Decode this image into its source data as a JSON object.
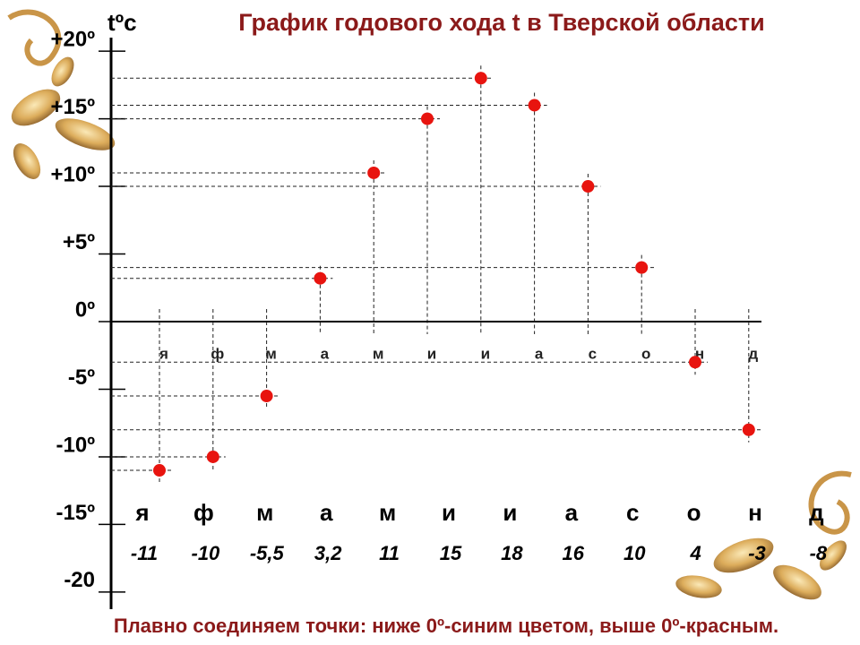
{
  "chart_data": {
    "type": "scatter",
    "title": "График годового хода t в Тверской области",
    "y_label": "tºс",
    "annotation": "Плавно соединяем точки: ниже 0º-синим цветом, выше 0º-красным.",
    "categories": [
      "я",
      "ф",
      "м",
      "а",
      "м",
      "и",
      "и",
      "а",
      "с",
      "о",
      "н",
      "д"
    ],
    "values": [
      -11,
      -10,
      -5.5,
      3.2,
      11,
      15,
      18,
      16,
      10,
      4,
      -3,
      -8
    ],
    "value_labels": [
      "-11",
      "-10",
      "-5,5",
      "3,2",
      "11",
      "15",
      "18",
      "16",
      "10",
      "4",
      "-3",
      "-8"
    ],
    "color": "#e8140f",
    "ylim": [
      -21,
      21
    ],
    "yticks": [
      {
        "value": 20,
        "label": "+20º"
      },
      {
        "value": 15,
        "label": "+15º"
      },
      {
        "value": 10,
        "label": "+10º"
      },
      {
        "value": 5,
        "label": "+5º"
      },
      {
        "value": 0,
        "label": "0º"
      },
      {
        "value": -5,
        "label": "-5º"
      },
      {
        "value": -10,
        "label": "-10º"
      },
      {
        "value": -15,
        "label": "-15º"
      },
      -20
    ]
  }
}
